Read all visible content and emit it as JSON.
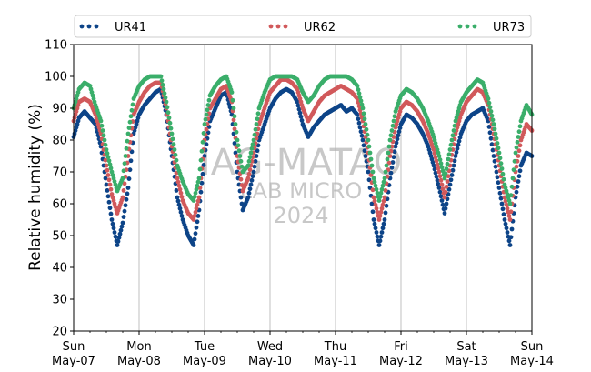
{
  "chart_data": {
    "type": "scatter",
    "ylabel": "Relative humidity (%)",
    "ylim": [
      20,
      110
    ],
    "yticks": [
      20,
      30,
      40,
      50,
      60,
      70,
      80,
      90,
      100,
      110
    ],
    "xlim": [
      "2023-05-07",
      "2023-05-14"
    ],
    "xticks": [
      {
        "day": "Sun",
        "date": "May-07"
      },
      {
        "day": "Mon",
        "date": "May-08"
      },
      {
        "day": "Tue",
        "date": "May-09"
      },
      {
        "day": "Wed",
        "date": "May-10"
      },
      {
        "day": "Thu",
        "date": "May-11"
      },
      {
        "day": "Fri",
        "date": "May-12"
      },
      {
        "day": "Sat",
        "date": "May-13"
      },
      {
        "day": "Sun",
        "date": "May-14"
      }
    ],
    "grid": "vertical",
    "legend_position": "top",
    "watermark": [
      "IAG-MATAO",
      "LAB MICRO",
      "2024"
    ],
    "series": [
      {
        "name": "UR41",
        "color": "#0d4488",
        "points": [
          [
            "05-07 00:00",
            81
          ],
          [
            "05-07 02:00",
            87
          ],
          [
            "05-07 04:00",
            89
          ],
          [
            "05-07 06:00",
            87
          ],
          [
            "05-07 08:00",
            85
          ],
          [
            "05-07 10:00",
            78
          ],
          [
            "05-07 12:00",
            66
          ],
          [
            "05-07 14:00",
            55
          ],
          [
            "05-07 16:00",
            47
          ],
          [
            "05-07 18:00",
            54
          ],
          [
            "05-07 20:00",
            65
          ],
          [
            "05-07 22:00",
            82
          ],
          [
            "05-08 00:00",
            88
          ],
          [
            "05-08 02:00",
            91
          ],
          [
            "05-08 04:00",
            93
          ],
          [
            "05-08 06:00",
            95
          ],
          [
            "05-08 08:00",
            96
          ],
          [
            "05-08 10:00",
            88
          ],
          [
            "05-08 12:00",
            75
          ],
          [
            "05-08 14:00",
            62
          ],
          [
            "05-08 16:00",
            55
          ],
          [
            "05-08 18:00",
            50
          ],
          [
            "05-08 20:00",
            47
          ],
          [
            "05-08 22:00",
            58
          ],
          [
            "05-09 00:00",
            75
          ],
          [
            "05-09 02:00",
            86
          ],
          [
            "05-09 04:00",
            90
          ],
          [
            "05-09 06:00",
            94
          ],
          [
            "05-09 08:00",
            95
          ],
          [
            "05-09 10:00",
            88
          ],
          [
            "05-09 12:00",
            70
          ],
          [
            "05-09 14:00",
            58
          ],
          [
            "05-09 16:00",
            62
          ],
          [
            "05-09 18:00",
            70
          ],
          [
            "05-09 20:00",
            80
          ],
          [
            "05-09 22:00",
            85
          ],
          [
            "05-10 00:00",
            90
          ],
          [
            "05-10 02:00",
            93
          ],
          [
            "05-10 04:00",
            95
          ],
          [
            "05-10 06:00",
            96
          ],
          [
            "05-10 08:00",
            95
          ],
          [
            "05-10 10:00",
            92
          ],
          [
            "05-10 12:00",
            85
          ],
          [
            "05-10 14:00",
            81
          ],
          [
            "05-10 16:00",
            84
          ],
          [
            "05-10 18:00",
            86
          ],
          [
            "05-10 20:00",
            88
          ],
          [
            "05-10 22:00",
            89
          ],
          [
            "05-11 00:00",
            90
          ],
          [
            "05-11 02:00",
            91
          ],
          [
            "05-11 04:00",
            89
          ],
          [
            "05-11 06:00",
            90
          ],
          [
            "05-11 08:00",
            88
          ],
          [
            "05-11 10:00",
            80
          ],
          [
            "05-11 12:00",
            70
          ],
          [
            "05-11 14:00",
            55
          ],
          [
            "05-11 16:00",
            47
          ],
          [
            "05-11 18:00",
            55
          ],
          [
            "05-11 20:00",
            68
          ],
          [
            "05-11 22:00",
            78
          ],
          [
            "05-12 00:00",
            85
          ],
          [
            "05-12 02:00",
            88
          ],
          [
            "05-12 04:00",
            87
          ],
          [
            "05-12 06:00",
            85
          ],
          [
            "05-12 08:00",
            82
          ],
          [
            "05-12 10:00",
            78
          ],
          [
            "05-12 12:00",
            72
          ],
          [
            "05-12 14:00",
            65
          ],
          [
            "05-12 16:00",
            57
          ],
          [
            "05-12 18:00",
            66
          ],
          [
            "05-12 20:00",
            75
          ],
          [
            "05-12 22:00",
            82
          ],
          [
            "05-13 00:00",
            86
          ],
          [
            "05-13 02:00",
            88
          ],
          [
            "05-13 04:00",
            89
          ],
          [
            "05-13 06:00",
            90
          ],
          [
            "05-13 08:00",
            86
          ],
          [
            "05-13 10:00",
            75
          ],
          [
            "05-13 12:00",
            65
          ],
          [
            "05-13 14:00",
            55
          ],
          [
            "05-13 16:00",
            47
          ],
          [
            "05-13 18:00",
            62
          ],
          [
            "05-13 20:00",
            72
          ],
          [
            "05-13 22:00",
            76
          ],
          [
            "05-14 00:00",
            75
          ]
        ]
      },
      {
        "name": "UR62",
        "color": "#d1595b",
        "points": [
          [
            "05-07 00:00",
            86
          ],
          [
            "05-07 02:00",
            92
          ],
          [
            "05-07 04:00",
            93
          ],
          [
            "05-07 06:00",
            92
          ],
          [
            "05-07 08:00",
            88
          ],
          [
            "05-07 10:00",
            82
          ],
          [
            "05-07 12:00",
            72
          ],
          [
            "05-07 14:00",
            63
          ],
          [
            "05-07 16:00",
            57
          ],
          [
            "05-07 18:00",
            62
          ],
          [
            "05-07 20:00",
            75
          ],
          [
            "05-07 22:00",
            88
          ],
          [
            "05-08 00:00",
            92
          ],
          [
            "05-08 02:00",
            95
          ],
          [
            "05-08 04:00",
            97
          ],
          [
            "05-08 06:00",
            98
          ],
          [
            "05-08 08:00",
            98
          ],
          [
            "05-08 10:00",
            90
          ],
          [
            "05-08 12:00",
            78
          ],
          [
            "05-08 14:00",
            68
          ],
          [
            "05-08 16:00",
            61
          ],
          [
            "05-08 18:00",
            57
          ],
          [
            "05-08 20:00",
            55
          ],
          [
            "05-08 22:00",
            62
          ],
          [
            "05-09 00:00",
            80
          ],
          [
            "05-09 02:00",
            90
          ],
          [
            "05-09 04:00",
            93
          ],
          [
            "05-09 06:00",
            96
          ],
          [
            "05-09 08:00",
            97
          ],
          [
            "05-09 10:00",
            92
          ],
          [
            "05-09 12:00",
            75
          ],
          [
            "05-09 14:00",
            64
          ],
          [
            "05-09 16:00",
            68
          ],
          [
            "05-09 18:00",
            76
          ],
          [
            "05-09 20:00",
            85
          ],
          [
            "05-09 22:00",
            90
          ],
          [
            "05-10 00:00",
            95
          ],
          [
            "05-10 02:00",
            97
          ],
          [
            "05-10 04:00",
            99
          ],
          [
            "05-10 06:00",
            99
          ],
          [
            "05-10 08:00",
            98
          ],
          [
            "05-10 10:00",
            96
          ],
          [
            "05-10 12:00",
            90
          ],
          [
            "05-10 14:00",
            86
          ],
          [
            "05-10 16:00",
            89
          ],
          [
            "05-10 18:00",
            92
          ],
          [
            "05-10 20:00",
            94
          ],
          [
            "05-10 22:00",
            95
          ],
          [
            "05-11 00:00",
            96
          ],
          [
            "05-11 02:00",
            97
          ],
          [
            "05-11 04:00",
            96
          ],
          [
            "05-11 06:00",
            95
          ],
          [
            "05-11 08:00",
            93
          ],
          [
            "05-11 10:00",
            86
          ],
          [
            "05-11 12:00",
            76
          ],
          [
            "05-11 14:00",
            62
          ],
          [
            "05-11 16:00",
            55
          ],
          [
            "05-11 18:00",
            62
          ],
          [
            "05-11 20:00",
            75
          ],
          [
            "05-11 22:00",
            84
          ],
          [
            "05-12 00:00",
            90
          ],
          [
            "05-12 02:00",
            92
          ],
          [
            "05-12 04:00",
            91
          ],
          [
            "05-12 06:00",
            89
          ],
          [
            "05-12 08:00",
            86
          ],
          [
            "05-12 10:00",
            82
          ],
          [
            "05-12 12:00",
            77
          ],
          [
            "05-12 14:00",
            70
          ],
          [
            "05-12 16:00",
            62
          ],
          [
            "05-12 18:00",
            72
          ],
          [
            "05-12 20:00",
            82
          ],
          [
            "05-12 22:00",
            88
          ],
          [
            "05-13 00:00",
            92
          ],
          [
            "05-13 02:00",
            94
          ],
          [
            "05-13 04:00",
            96
          ],
          [
            "05-13 06:00",
            95
          ],
          [
            "05-13 08:00",
            91
          ],
          [
            "05-13 10:00",
            82
          ],
          [
            "05-13 12:00",
            72
          ],
          [
            "05-13 14:00",
            62
          ],
          [
            "05-13 16:00",
            55
          ],
          [
            "05-13 18:00",
            70
          ],
          [
            "05-13 20:00",
            80
          ],
          [
            "05-13 22:00",
            85
          ],
          [
            "05-14 00:00",
            83
          ]
        ]
      },
      {
        "name": "UR73",
        "color": "#3aae6a",
        "points": [
          [
            "05-07 00:00",
            90
          ],
          [
            "05-07 02:00",
            96
          ],
          [
            "05-07 04:00",
            98
          ],
          [
            "05-07 06:00",
            97
          ],
          [
            "05-07 08:00",
            91
          ],
          [
            "05-07 10:00",
            86
          ],
          [
            "05-07 12:00",
            77
          ],
          [
            "05-07 14:00",
            70
          ],
          [
            "05-07 16:00",
            64
          ],
          [
            "05-07 18:00",
            68
          ],
          [
            "05-07 20:00",
            82
          ],
          [
            "05-07 22:00",
            93
          ],
          [
            "05-08 00:00",
            97
          ],
          [
            "05-08 02:00",
            99
          ],
          [
            "05-08 04:00",
            100
          ],
          [
            "05-08 06:00",
            100
          ],
          [
            "05-08 08:00",
            100
          ],
          [
            "05-08 10:00",
            92
          ],
          [
            "05-08 12:00",
            82
          ],
          [
            "05-08 14:00",
            72
          ],
          [
            "05-08 16:00",
            67
          ],
          [
            "05-08 18:00",
            63
          ],
          [
            "05-08 20:00",
            61
          ],
          [
            "05-08 22:00",
            68
          ],
          [
            "05-09 00:00",
            85
          ],
          [
            "05-09 02:00",
            94
          ],
          [
            "05-09 04:00",
            97
          ],
          [
            "05-09 06:00",
            99
          ],
          [
            "05-09 08:00",
            100
          ],
          [
            "05-09 10:00",
            95
          ],
          [
            "05-09 12:00",
            80
          ],
          [
            "05-09 14:00",
            70
          ],
          [
            "05-09 16:00",
            72
          ],
          [
            "05-09 18:00",
            80
          ],
          [
            "05-09 20:00",
            90
          ],
          [
            "05-09 22:00",
            95
          ],
          [
            "05-10 00:00",
            99
          ],
          [
            "05-10 02:00",
            100
          ],
          [
            "05-10 04:00",
            100
          ],
          [
            "05-10 06:00",
            100
          ],
          [
            "05-10 08:00",
            100
          ],
          [
            "05-10 10:00",
            99
          ],
          [
            "05-10 12:00",
            95
          ],
          [
            "05-10 14:00",
            92
          ],
          [
            "05-10 16:00",
            94
          ],
          [
            "05-10 18:00",
            97
          ],
          [
            "05-10 20:00",
            99
          ],
          [
            "05-10 22:00",
            100
          ],
          [
            "05-11 00:00",
            100
          ],
          [
            "05-11 02:00",
            100
          ],
          [
            "05-11 04:00",
            100
          ],
          [
            "05-11 06:00",
            99
          ],
          [
            "05-11 08:00",
            97
          ],
          [
            "05-11 10:00",
            90
          ],
          [
            "05-11 12:00",
            80
          ],
          [
            "05-11 14:00",
            68
          ],
          [
            "05-11 16:00",
            61
          ],
          [
            "05-11 18:00",
            68
          ],
          [
            "05-11 20:00",
            80
          ],
          [
            "05-11 22:00",
            89
          ],
          [
            "05-12 00:00",
            94
          ],
          [
            "05-12 02:00",
            96
          ],
          [
            "05-12 04:00",
            95
          ],
          [
            "05-12 06:00",
            93
          ],
          [
            "05-12 08:00",
            90
          ],
          [
            "05-12 10:00",
            86
          ],
          [
            "05-12 12:00",
            81
          ],
          [
            "05-12 14:00",
            75
          ],
          [
            "05-12 16:00",
            68
          ],
          [
            "05-12 18:00",
            77
          ],
          [
            "05-12 20:00",
            86
          ],
          [
            "05-12 22:00",
            92
          ],
          [
            "05-13 00:00",
            95
          ],
          [
            "05-13 02:00",
            97
          ],
          [
            "05-13 04:00",
            99
          ],
          [
            "05-13 06:00",
            98
          ],
          [
            "05-13 08:00",
            93
          ],
          [
            "05-13 10:00",
            85
          ],
          [
            "05-13 12:00",
            76
          ],
          [
            "05-13 14:00",
            66
          ],
          [
            "05-13 16:00",
            60
          ],
          [
            "05-13 18:00",
            76
          ],
          [
            "05-13 20:00",
            86
          ],
          [
            "05-13 22:00",
            91
          ],
          [
            "05-14 00:00",
            88
          ]
        ]
      }
    ]
  }
}
